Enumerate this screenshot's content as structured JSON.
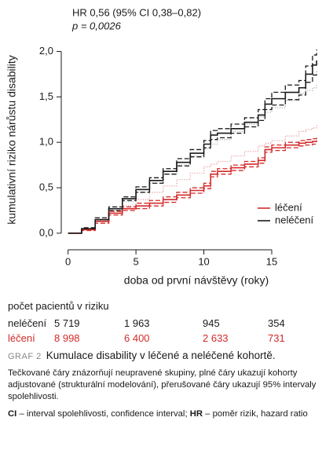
{
  "chart_data": {
    "type": "step",
    "annotations": [
      "HR 0,56 (95% CI 0,38–0,82)",
      "p = 0,0026"
    ],
    "x_label": "doba od první návštěvy (roky)",
    "y_label": "kumulativní riziko nárůstu disability",
    "xlim": [
      -0.5,
      18.7
    ],
    "xticks": [
      0,
      5,
      10,
      15
    ],
    "ylim": [
      -0.07,
      2.22
    ],
    "yticks": [
      {
        "value": 0,
        "label": "0,0"
      },
      {
        "value": 0.5,
        "label": "0,5"
      },
      {
        "value": 1,
        "label": "1,0"
      },
      {
        "value": 1.5,
        "label": "1,5"
      },
      {
        "value": 2,
        "label": "2,0"
      }
    ],
    "legend": "lower right",
    "x": [
      0,
      1,
      2,
      3,
      4,
      5,
      6,
      7,
      8,
      9,
      10,
      10.5,
      11,
      12,
      13,
      14,
      14.5,
      15,
      16,
      17,
      17.5,
      18,
      18.3
    ],
    "series": [
      {
        "color": "#b0b0b0",
        "style": "dotted",
        "values": [
          0,
          0.05,
          0.14,
          0.25,
          0.35,
          0.45,
          0.55,
          0.65,
          0.75,
          0.85,
          0.93,
          0.98,
          1.03,
          1.12,
          1.2,
          1.28,
          1.33,
          1.38,
          1.46,
          1.54,
          1.57,
          1.6,
          1.63
        ]
      },
      {
        "color": "#e9a0a0",
        "style": "dotted",
        "values": [
          0,
          0.04,
          0.13,
          0.22,
          0.3,
          0.37,
          0.45,
          0.52,
          0.59,
          0.66,
          0.73,
          0.76,
          0.79,
          0.85,
          0.9,
          0.96,
          0.99,
          1.02,
          1.07,
          1.12,
          1.14,
          1.16,
          1.19
        ]
      },
      {
        "color": "#1a1a1a",
        "style": "dashed",
        "values": [
          0,
          0.06,
          0.17,
          0.29,
          0.4,
          0.51,
          0.61,
          0.71,
          0.82,
          0.92,
          1.02,
          1.13,
          1.15,
          1.2,
          1.27,
          1.36,
          1.48,
          1.55,
          1.63,
          1.68,
          1.84,
          1.96,
          2.02
        ]
      },
      {
        "color": "#1a1a1a",
        "style": "dashed",
        "values": [
          0,
          0.04,
          0.13,
          0.25,
          0.36,
          0.45,
          0.55,
          0.65,
          0.74,
          0.84,
          0.94,
          1.03,
          1.05,
          1.1,
          1.17,
          1.24,
          1.36,
          1.41,
          1.47,
          1.52,
          1.66,
          1.74,
          1.78
        ]
      },
      {
        "color": "#d42a2a",
        "style": "dashed",
        "values": [
          0,
          0.05,
          0.15,
          0.24,
          0.29,
          0.33,
          0.36,
          0.4,
          0.45,
          0.5,
          0.55,
          0.68,
          0.71,
          0.75,
          0.79,
          0.83,
          0.95,
          0.97,
          1.0,
          1.02,
          1.03,
          1.04,
          1.05
        ]
      },
      {
        "color": "#d42a2a",
        "style": "dashed",
        "values": [
          0,
          0.03,
          0.11,
          0.2,
          0.25,
          0.27,
          0.3,
          0.34,
          0.39,
          0.44,
          0.49,
          0.62,
          0.65,
          0.69,
          0.73,
          0.77,
          0.89,
          0.91,
          0.94,
          0.96,
          0.97,
          0.98,
          0.99
        ]
      },
      {
        "name": "léčení",
        "color": "#d42a2a",
        "style": "solid",
        "values": [
          0,
          0.04,
          0.13,
          0.22,
          0.27,
          0.3,
          0.33,
          0.37,
          0.42,
          0.47,
          0.52,
          0.65,
          0.68,
          0.72,
          0.76,
          0.8,
          0.92,
          0.94,
          0.97,
          0.99,
          1.0,
          1.01,
          1.02
        ]
      },
      {
        "name": "neléčení",
        "color": "#1a1a1a",
        "style": "solid",
        "values": [
          0,
          0.05,
          0.15,
          0.27,
          0.38,
          0.48,
          0.58,
          0.68,
          0.78,
          0.88,
          0.98,
          1.08,
          1.1,
          1.15,
          1.22,
          1.3,
          1.42,
          1.48,
          1.55,
          1.6,
          1.75,
          1.85,
          1.9
        ]
      }
    ]
  },
  "risk_table": {
    "title": "počet pacientů v riziku",
    "rows": [
      {
        "label": "neléčení",
        "color": "#1a1a1a",
        "counts": [
          "5 719",
          "1 963",
          "945",
          "354"
        ]
      },
      {
        "label": "léčení",
        "color": "#d42a2a",
        "counts": [
          "8 998",
          "6 400",
          "2 633",
          "731"
        ]
      }
    ]
  },
  "caption": {
    "label": "GRAF 2",
    "title": "Kumulace disability v léčené a neléčené kohortě.",
    "text": "Tečkované čáry znázorňují neupravené skupiny, plné čáry ukazují kohorty adjustované (strukturální modelování), přerušované čáry ukazují 95% intervaly spolehlivosti.",
    "footnote": [
      "CI",
      " – interval spolehlivosti, confidence interval; ",
      "HR",
      " – poměr rizik, hazard ratio"
    ]
  }
}
